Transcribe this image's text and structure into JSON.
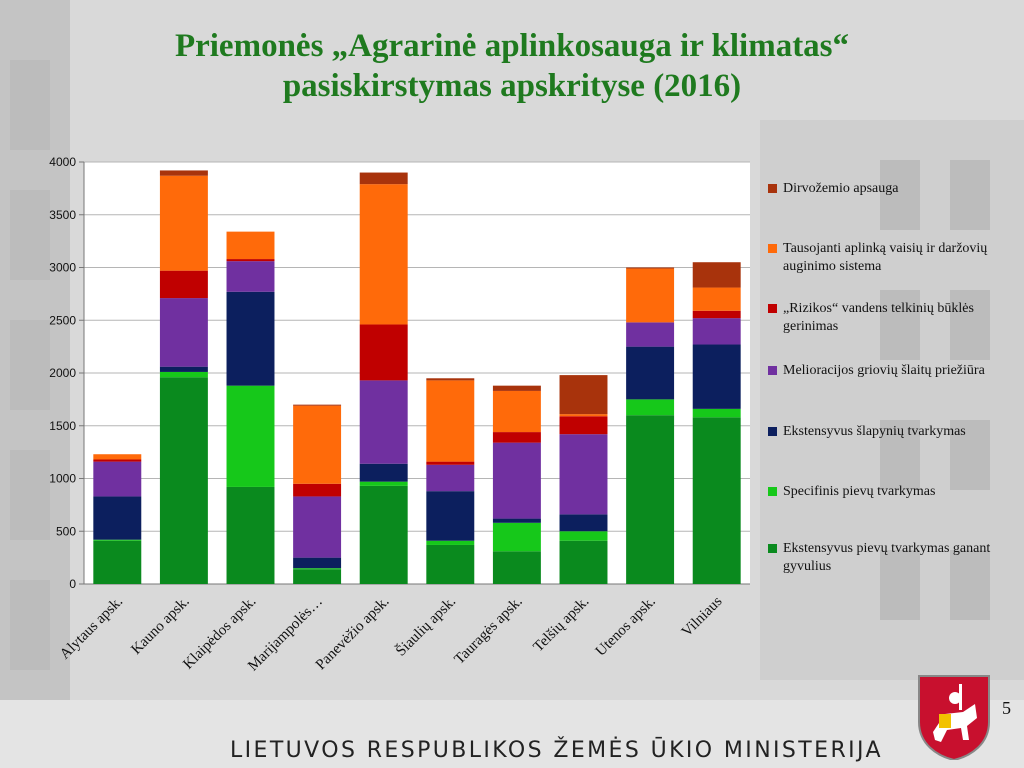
{
  "title_line1": "Priemonės „Agrarinė aplinkosauga ir klimatas“",
  "title_line2": "pasiskirstymas apskrityse (2016)",
  "footer": "LIETUVOS RESPUBLIKOS ŽEMĖS ŪKIO MINISTERIJA",
  "page_number": "5",
  "chart_data": {
    "type": "bar",
    "stacked": true,
    "categories": [
      "Alytaus apsk.",
      "Kauno apsk.",
      "Klaipėdos apsk.",
      "Marijampolės…",
      "Panevėžio apsk.",
      "Šiaulių apsk.",
      "Tauragės apsk.",
      "Telšių apsk.",
      "Utenos apsk.",
      "Vilniaus"
    ],
    "ylim": [
      0,
      4000
    ],
    "yticks": [
      0,
      500,
      1000,
      1500,
      2000,
      2500,
      3000,
      3500,
      4000
    ],
    "grid": true,
    "legend_position": "right",
    "series": [
      {
        "name": "Ekstensyvus pievų tvarkymas ganant gyvulius",
        "color": "#0a8a1e",
        "values": [
          410,
          1960,
          920,
          140,
          930,
          370,
          310,
          410,
          1600,
          1580
        ]
      },
      {
        "name": "Specifinis pievų tvarkymas",
        "color": "#16c81a",
        "values": [
          10,
          50,
          960,
          10,
          40,
          40,
          270,
          90,
          150,
          80
        ]
      },
      {
        "name": "Ekstensyvus šlapynių tvarkymas",
        "color": "#0c1f5e",
        "values": [
          410,
          50,
          890,
          100,
          170,
          470,
          40,
          160,
          500,
          610
        ]
      },
      {
        "name": "Melioracijos griovių šlaitų priežiūra",
        "color": "#7030a0",
        "values": [
          330,
          650,
          290,
          580,
          790,
          250,
          720,
          760,
          230,
          250
        ]
      },
      {
        "name": "„Rizikos“ vandens telkinių būklės gerinimas",
        "color": "#c00000",
        "values": [
          20,
          260,
          20,
          120,
          530,
          30,
          100,
          170,
          0,
          70
        ]
      },
      {
        "name": "Tausojanti aplinką vaisių ir daržovių auginimo sistema",
        "color": "#ff6a0a",
        "values": [
          50,
          900,
          260,
          740,
          1330,
          770,
          390,
          20,
          510,
          220
        ]
      },
      {
        "name": "Dirvožemio apsauga",
        "color": "#a8330c",
        "values": [
          0,
          50,
          0,
          10,
          110,
          20,
          50,
          370,
          10,
          240
        ]
      }
    ]
  }
}
